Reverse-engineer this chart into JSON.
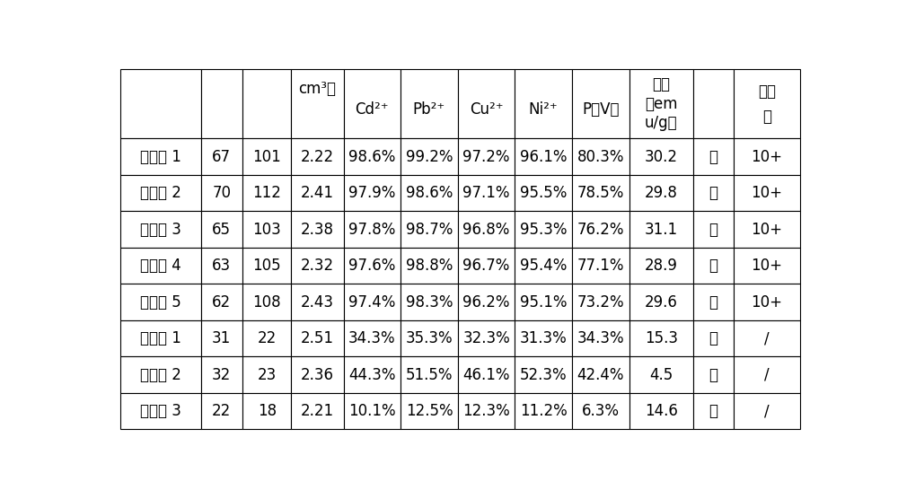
{
  "header_texts": [
    "",
    "",
    "",
    "cm³）",
    "Cd²⁺",
    "Pb²⁺",
    "Cu²⁺",
    "Ni²⁺",
    "P（V）",
    "强度\n（em\n\nu/g）",
    "",
    "用次\n数"
  ],
  "rows": [
    [
      "实施例 1",
      "67",
      "101",
      "2.22",
      "98.6%",
      "99.2%",
      "97.2%",
      "96.1%",
      "80.3%",
      "30.2",
      "易",
      "10+"
    ],
    [
      "实施例 2",
      "70",
      "112",
      "2.41",
      "97.9%",
      "98.6%",
      "97.1%",
      "95.5%",
      "78.5%",
      "29.8",
      "易",
      "10+"
    ],
    [
      "实施例 3",
      "65",
      "103",
      "2.38",
      "97.8%",
      "98.7%",
      "96.8%",
      "95.3%",
      "76.2%",
      "31.1",
      "易",
      "10+"
    ],
    [
      "实施例 4",
      "63",
      "105",
      "2.32",
      "97.6%",
      "98.8%",
      "96.7%",
      "95.4%",
      "77.1%",
      "28.9",
      "易",
      "10+"
    ],
    [
      "实施例 5",
      "62",
      "108",
      "2.43",
      "97.4%",
      "98.3%",
      "96.2%",
      "95.1%",
      "73.2%",
      "29.6",
      "易",
      "10+"
    ],
    [
      "比较例 1",
      "31",
      "22",
      "2.51",
      "34.3%",
      "35.3%",
      "32.3%",
      "31.3%",
      "34.3%",
      "15.3",
      "易",
      "/"
    ],
    [
      "比较例 2",
      "32",
      "23",
      "2.36",
      "44.3%",
      "51.5%",
      "46.1%",
      "52.3%",
      "42.4%",
      "4.5",
      "易",
      "/"
    ],
    [
      "比例例 3",
      "22",
      "18",
      "2.21",
      "10.1%",
      "12.5%",
      "12.3%",
      "11.2%",
      "6.3%",
      "14.6",
      "易",
      "/"
    ]
  ],
  "col_widths_rel": [
    1.15,
    0.6,
    0.7,
    0.75,
    0.82,
    0.82,
    0.82,
    0.82,
    0.82,
    0.92,
    0.58,
    0.95
  ],
  "bg_color": "#ffffff",
  "text_color": "#000000",
  "font_size": 12,
  "header_font_size": 12
}
